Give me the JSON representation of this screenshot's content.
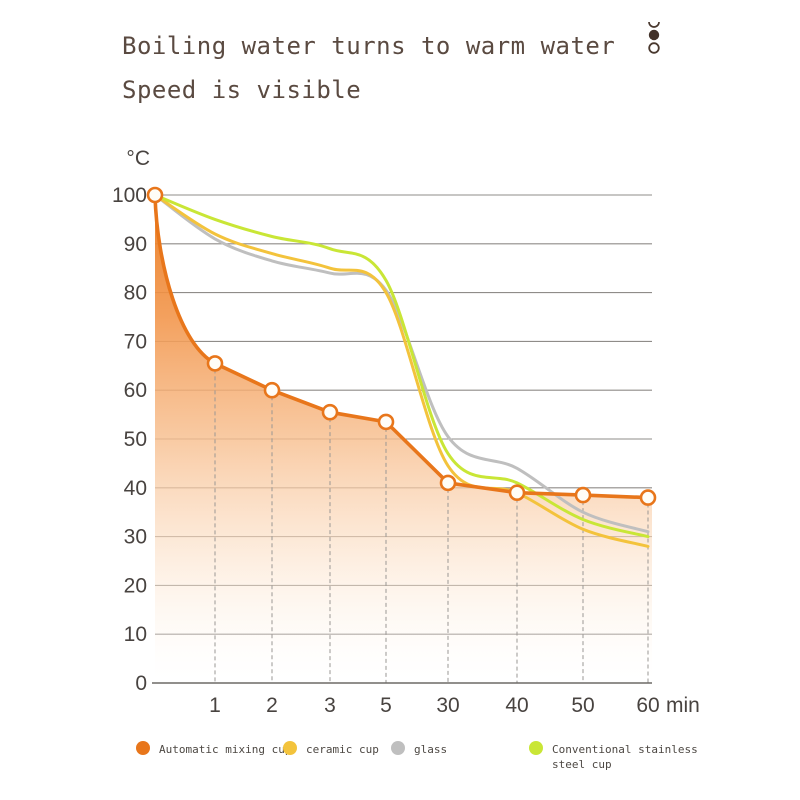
{
  "title": {
    "line1": "Boiling water turns to warm water",
    "line2": "Speed is visible"
  },
  "decoration": {
    "dots": [
      "half-circle-outline",
      "filled-circle",
      "circle-outline"
    ],
    "dot_color": "#4a392f"
  },
  "chart_data": {
    "type": "line",
    "title": "",
    "xlabel": "",
    "ylabel": "",
    "x_unit_label": "min",
    "y_unit_label": "°C",
    "x_values": [
      0,
      1,
      2,
      3,
      5,
      30,
      40,
      50,
      60
    ],
    "x_tick_labels": [
      "1",
      "2",
      "3",
      "5",
      "30",
      "40",
      "50",
      "60"
    ],
    "y_ticks": [
      0,
      10,
      20,
      30,
      40,
      50,
      60,
      70,
      80,
      90,
      100
    ],
    "ylim": [
      0,
      100
    ],
    "grid": true,
    "legend_position": "bottom",
    "series": [
      {
        "name": "Automatic mixing cup",
        "color": "#E8761B",
        "style": "polyline",
        "markers": true,
        "area_fill": true,
        "values": [
          100,
          65.5,
          60,
          55.5,
          53.5,
          41,
          39,
          38.5,
          38
        ]
      },
      {
        "name": "ceramic cup",
        "color": "#F3C33C",
        "style": "smooth",
        "markers": false,
        "area_fill": false,
        "values": [
          100,
          92,
          88,
          85,
          80,
          44.5,
          39,
          31.5,
          28
        ]
      },
      {
        "name": "glass",
        "color": "#BFBFBF",
        "style": "smooth",
        "markers": false,
        "area_fill": false,
        "values": [
          100,
          91,
          86.5,
          84,
          80.5,
          50.5,
          44,
          35,
          31
        ]
      },
      {
        "name": "Conventional stainless steel cup",
        "color": "#C9E636",
        "style": "smooth",
        "markers": false,
        "area_fill": false,
        "values": [
          100,
          95,
          91.5,
          89,
          82.5,
          47,
          41,
          33.5,
          30
        ]
      }
    ]
  }
}
